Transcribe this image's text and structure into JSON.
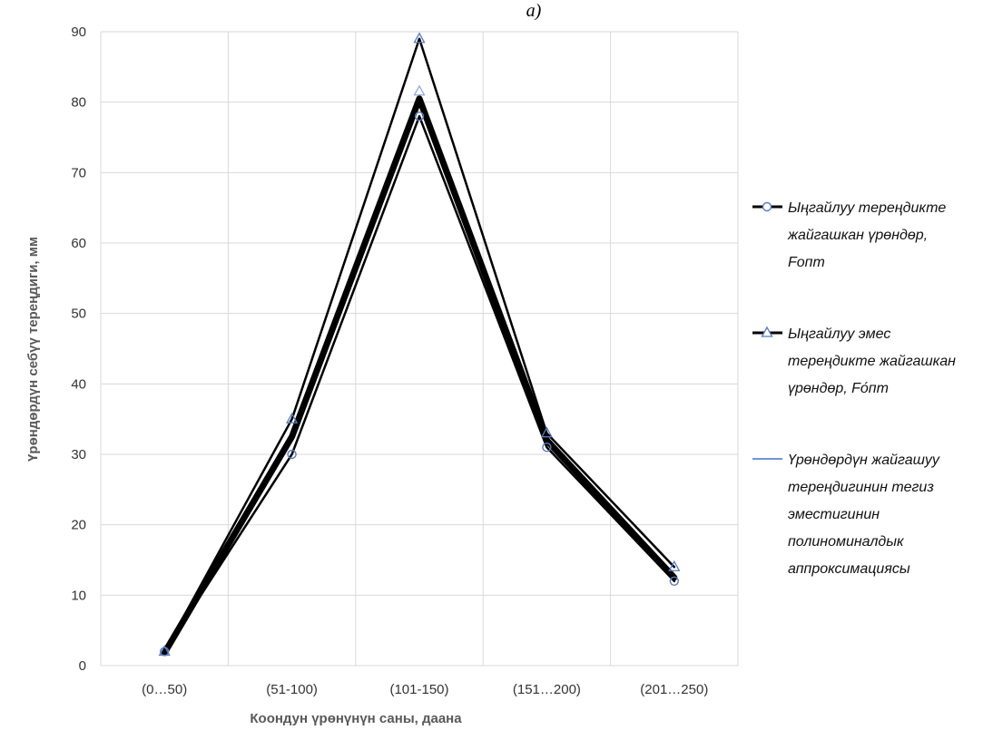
{
  "top_label": "а)",
  "chart_data": {
    "type": "line",
    "categories": [
      "(0…50)",
      "(51-100)",
      "(101-150)",
      "(151…200)",
      "(201…250)"
    ],
    "ylim": [
      0,
      90
    ],
    "yticks": [
      0,
      10,
      20,
      30,
      40,
      50,
      60,
      70,
      80,
      90
    ],
    "grid": true,
    "legend_position": "right",
    "xlabel": "Коондун үрөнүнүн саны, даана",
    "ylabel": "Үрөндөрдүн себүү тереңдиги, мм",
    "series": [
      {
        "name": "Ыңгайлуу тереңдикте жайгашкан үрөндөр, Fопт",
        "legend_lines": [
          "Ыңгайлуу тереңдикте",
          "жайгашкан үрөндөр,",
          "Fопт"
        ],
        "values": [
          2,
          30,
          78,
          31,
          12
        ],
        "marker": "circle",
        "color": "#000000",
        "marker_color": "#5a7bbd"
      },
      {
        "name": "Ыңгайлуу эмес тереңдикте жайгашкан үрөндөр, Fо́пт",
        "legend_lines": [
          "Ыңгайлуу эмес",
          "тереңдикте жайгашкан",
          "үрөндөр,  Fо́пт"
        ],
        "values": [
          2,
          35,
          89,
          33,
          14
        ],
        "marker": "triangle",
        "color": "#000000",
        "marker_color": "#5a7bbd"
      },
      {
        "name": "Үрөндөрдүн жайгашуу тереңдигинин тегиз эместигинин полиноминалдык аппроксимациясы",
        "legend_lines": [
          "Үрөндөрдүн  жайгашуу",
          "тереңдигинин тегиз",
          "эместигинин",
          "полиноминалдык",
          "аппроксимациясы"
        ],
        "values": [
          1.8,
          32.5,
          80.5,
          32,
          12.5
        ],
        "marker": "none",
        "color": "#000000",
        "legend_color": "#4472c4"
      }
    ]
  }
}
